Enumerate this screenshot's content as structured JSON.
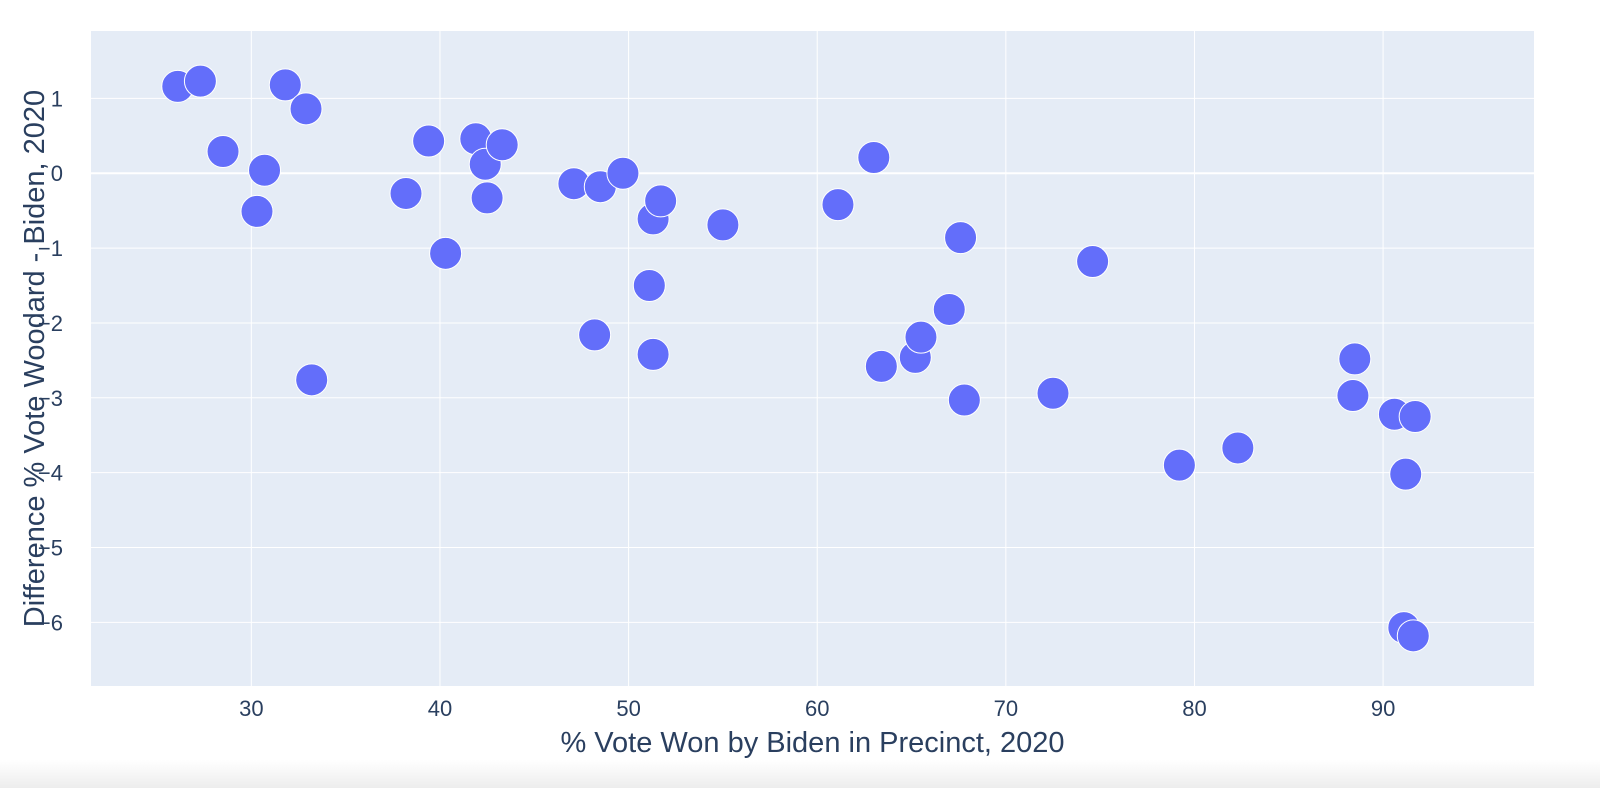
{
  "chart_data": {
    "type": "scatter",
    "title": "",
    "xlabel": "% Vote Won by Biden in Precinct, 2020",
    "ylabel": "Difference % Vote Woodard - Biden, 2020",
    "xlim": [
      21.5,
      98
    ],
    "ylim": [
      -6.85,
      1.9
    ],
    "x_ticks": [
      30,
      40,
      50,
      60,
      70,
      80,
      90
    ],
    "y_ticks": [
      1,
      0,
      -1,
      -2,
      -3,
      -4,
      -5,
      -6
    ],
    "y_tick_labels": [
      "1",
      "0",
      "−1",
      "−2",
      "−3",
      "−4",
      "−5",
      "−6"
    ],
    "grid": true,
    "legend": "none",
    "colors": {
      "marker": "#636efa",
      "marker_outline": "#ffffff",
      "plot_background": "#e5ecf6",
      "grid": "#ffffff",
      "text": "#2a3f5f"
    },
    "points": [
      {
        "x": 26.1,
        "y": 1.16
      },
      {
        "x": 27.3,
        "y": 1.23
      },
      {
        "x": 28.5,
        "y": 0.29
      },
      {
        "x": 30.3,
        "y": -0.51
      },
      {
        "x": 30.7,
        "y": 0.04
      },
      {
        "x": 31.8,
        "y": 1.18
      },
      {
        "x": 32.9,
        "y": 0.86
      },
      {
        "x": 33.2,
        "y": -2.76
      },
      {
        "x": 38.2,
        "y": -0.27
      },
      {
        "x": 39.4,
        "y": 0.43
      },
      {
        "x": 40.3,
        "y": -1.07
      },
      {
        "x": 41.9,
        "y": 0.46
      },
      {
        "x": 42.4,
        "y": 0.12
      },
      {
        "x": 42.5,
        "y": -0.33
      },
      {
        "x": 43.3,
        "y": 0.38
      },
      {
        "x": 47.1,
        "y": -0.14
      },
      {
        "x": 48.2,
        "y": -2.16
      },
      {
        "x": 48.5,
        "y": -0.18
      },
      {
        "x": 49.7,
        "y": 0.0
      },
      {
        "x": 51.1,
        "y": -1.5
      },
      {
        "x": 51.3,
        "y": -0.61
      },
      {
        "x": 51.3,
        "y": -2.42
      },
      {
        "x": 51.7,
        "y": -0.37
      },
      {
        "x": 55.0,
        "y": -0.69
      },
      {
        "x": 61.1,
        "y": -0.42
      },
      {
        "x": 63.0,
        "y": 0.21
      },
      {
        "x": 63.4,
        "y": -2.58
      },
      {
        "x": 65.2,
        "y": -2.46
      },
      {
        "x": 65.5,
        "y": -2.19
      },
      {
        "x": 67.0,
        "y": -1.82
      },
      {
        "x": 67.6,
        "y": -0.86
      },
      {
        "x": 67.8,
        "y": -3.03
      },
      {
        "x": 72.5,
        "y": -2.94
      },
      {
        "x": 74.6,
        "y": -1.18
      },
      {
        "x": 79.2,
        "y": -3.9
      },
      {
        "x": 82.3,
        "y": -3.67
      },
      {
        "x": 88.4,
        "y": -2.97
      },
      {
        "x": 88.5,
        "y": -2.48
      },
      {
        "x": 90.6,
        "y": -3.22
      },
      {
        "x": 91.1,
        "y": -6.07
      },
      {
        "x": 91.2,
        "y": -4.02
      },
      {
        "x": 91.6,
        "y": -6.18
      },
      {
        "x": 91.7,
        "y": -3.25
      }
    ]
  }
}
